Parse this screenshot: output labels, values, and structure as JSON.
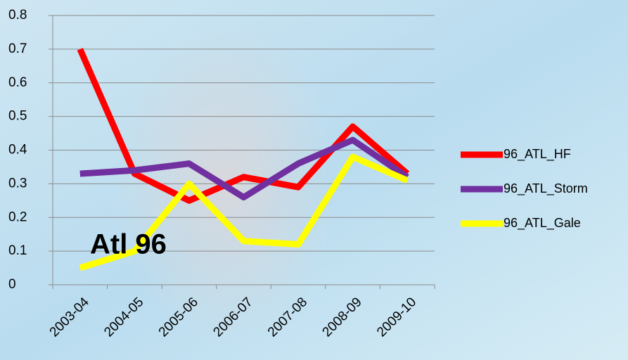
{
  "chart_data": {
    "type": "line",
    "annotation": "Atl 96",
    "categories": [
      "2003-04",
      "2004-05",
      "2005-06",
      "2006-07",
      "2007-08",
      "2008-09",
      "2009-10"
    ],
    "series": [
      {
        "name": "96_ATL_HF",
        "color": "#ff0000",
        "values": [
          0.7,
          0.33,
          0.25,
          0.32,
          0.29,
          0.47,
          0.33
        ]
      },
      {
        "name": "96_ATL_Storm",
        "color": "#7030a0",
        "values": [
          0.33,
          0.34,
          0.36,
          0.26,
          0.36,
          0.43,
          0.32
        ]
      },
      {
        "name": "96_ATL_Gale",
        "color": "#ffff00",
        "values": [
          0.05,
          0.1,
          0.3,
          0.13,
          0.12,
          0.38,
          0.31
        ]
      }
    ],
    "ylim": [
      0,
      0.8
    ],
    "yticks": [
      0,
      0.1,
      0.2,
      0.3,
      0.4,
      0.5,
      0.6,
      0.7,
      0.8
    ],
    "grid": true,
    "legend": "right"
  }
}
